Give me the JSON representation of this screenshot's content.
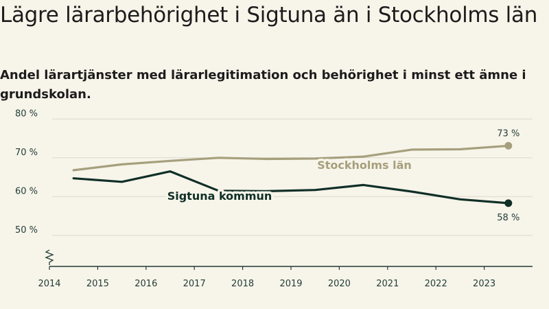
{
  "title": "Lägre lärarbehörighet i Sigtuna än i Stockholms län",
  "subtitle": "Andel lärartjänster med lärarlegitimation och behörighet i minst ett ämne i grundskolan.",
  "colors": {
    "background": "#f7f4ea",
    "sigtuna": "#0f2f27",
    "stockholm": "#a69f7c",
    "grid": "#dcd8cc",
    "axis": "#1f3b35"
  },
  "chart_data": {
    "type": "line",
    "title": "Lägre lärarbehörighet i Sigtuna än i Stockholms län",
    "subtitle": "Andel lärartjänster med lärarlegitimation och behörighet i minst ett ämne i grundskolan.",
    "xlabel": "",
    "ylabel": "",
    "x_ticks": [
      "2014",
      "2015",
      "2016",
      "2017",
      "2018",
      "2019",
      "2020",
      "2021",
      "2022",
      "2023"
    ],
    "y_ticks": [
      {
        "value": 50,
        "label": "50 %"
      },
      {
        "value": 60,
        "label": "60 %"
      },
      {
        "value": 70,
        "label": "70 %"
      },
      {
        "value": 80,
        "label": "80 %"
      }
    ],
    "xlim": [
      2014,
      2024
    ],
    "ylim": [
      42,
      82
    ],
    "axis_break": true,
    "x": [
      2014.5,
      2015.5,
      2016.5,
      2017.5,
      2018.5,
      2019.5,
      2020.5,
      2021.5,
      2022.5,
      2023.5
    ],
    "series": [
      {
        "name": "Stockholms län",
        "key": "stockholm",
        "values": [
          66.8,
          68.3,
          69.2,
          70.0,
          69.7,
          69.8,
          70.3,
          72.1,
          72.2,
          73.1
        ],
        "end_label": "73 %",
        "label_text": "Stockholms län"
      },
      {
        "name": "Sigtuna kommun",
        "key": "sigtuna",
        "values": [
          64.7,
          63.8,
          66.5,
          61.5,
          61.4,
          61.7,
          63.0,
          61.3,
          59.3,
          58.3
        ],
        "end_label": "58 %",
        "label_text": "Sigtuna kommun"
      }
    ]
  }
}
